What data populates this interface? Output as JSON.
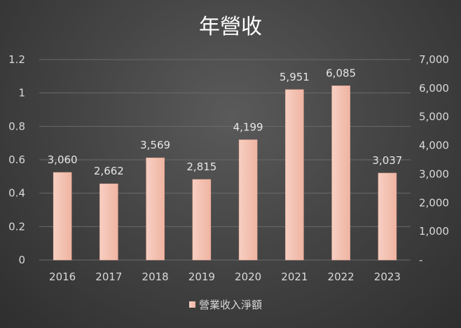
{
  "chart_data": {
    "type": "bar",
    "title": "年營收",
    "categories": [
      "2016",
      "2017",
      "2018",
      "2019",
      "2020",
      "2021",
      "2022",
      "2023"
    ],
    "series": [
      {
        "name": "營業收入淨額",
        "values": [
          3060,
          2662,
          3569,
          2815,
          4199,
          5951,
          6085,
          3037
        ],
        "axis": "right"
      }
    ],
    "data_labels": [
      "3,060",
      "2,662",
      "3,569",
      "2,815",
      "4,199",
      "5,951",
      "6,085",
      "3,037"
    ],
    "left_axis": {
      "ticks": [
        "0",
        "0.2",
        "0.4",
        "0.6",
        "0.8",
        "1",
        "1.2"
      ],
      "range": [
        0,
        1.2
      ]
    },
    "right_axis": {
      "ticks": [
        "-",
        "1,000",
        "2,000",
        "3,000",
        "4,000",
        "5,000",
        "6,000",
        "7,000"
      ],
      "range": [
        0,
        7000
      ]
    },
    "grid": true,
    "legend_position": "bottom",
    "colors": {
      "bar": "#f4c2b2",
      "bar_edge": "#e8a996"
    }
  }
}
